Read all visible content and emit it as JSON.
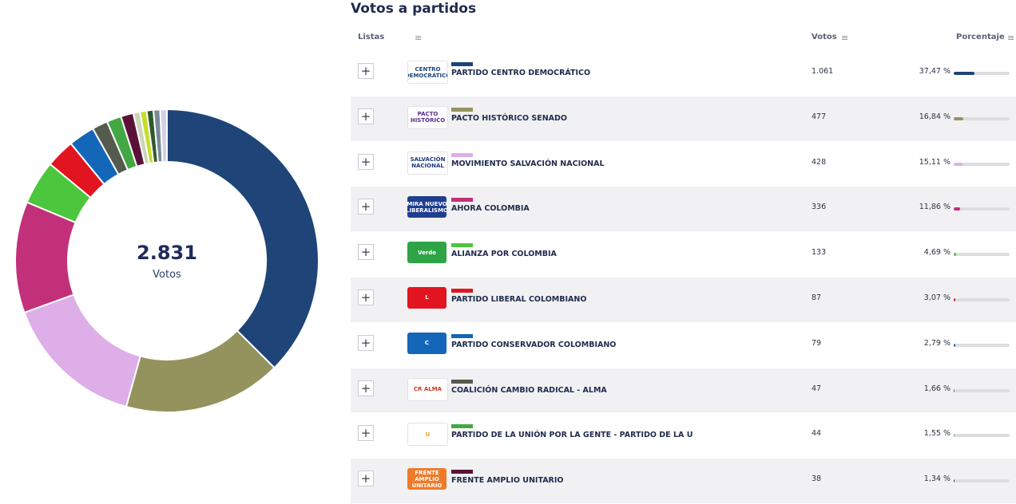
{
  "summary": {
    "total": "2.831",
    "label": "Votos"
  },
  "title": "Votos a partidos",
  "table": {
    "headers": {
      "lists": "Listas",
      "votes": "Votos",
      "percentage": "Porcentaje"
    },
    "rows": [
      {
        "name": "PARTIDO CENTRO DEMOCRÁTICO",
        "votes": "1.061",
        "pct_text": "37,47 %",
        "pct": 37.47,
        "color": "#1e4478",
        "logo_text": "CENTRO DEMOCRÁTICO",
        "logo_bg": "#ffffff",
        "logo_fg": "#1e4478"
      },
      {
        "name": "PACTO HISTÓRICO SENADO",
        "votes": "477",
        "pct_text": "16,84 %",
        "pct": 16.84,
        "color": "#94935e",
        "logo_text": "PACTO HISTÓRICO",
        "logo_bg": "#ffffff",
        "logo_fg": "#5b2c8a"
      },
      {
        "name": "MOVIMIENTO SALVACIÓN NACIONAL",
        "votes": "428",
        "pct_text": "15,11 %",
        "pct": 15.11,
        "color": "#ddaee8",
        "logo_text": "SALVACIÓN NACIONAL",
        "logo_bg": "#ffffff",
        "logo_fg": "#1e3a7a"
      },
      {
        "name": "AHORA COLOMBIA",
        "votes": "336",
        "pct_text": "11,86 %",
        "pct": 11.86,
        "color": "#c2307a",
        "logo_text": "MIRA NUEVO LIBERALISMO",
        "logo_bg": "#1e3f8f",
        "logo_fg": "#ffffff"
      },
      {
        "name": "ALIANZA POR COLOMBIA",
        "votes": "133",
        "pct_text": "4,69 %",
        "pct": 4.69,
        "color": "#4cc63c",
        "logo_text": "Verde",
        "logo_bg": "#2fa446",
        "logo_fg": "#ffffff"
      },
      {
        "name": "PARTIDO LIBERAL COLOMBIANO",
        "votes": "87",
        "pct_text": "3,07 %",
        "pct": 3.07,
        "color": "#e1141f",
        "logo_text": "L",
        "logo_bg": "#e1141f",
        "logo_fg": "#ffffff"
      },
      {
        "name": "PARTIDO CONSERVADOR COLOMBIANO",
        "votes": "79",
        "pct_text": "2,79 %",
        "pct": 2.79,
        "color": "#1366b8",
        "logo_text": "C",
        "logo_bg": "#1366b8",
        "logo_fg": "#ffffff"
      },
      {
        "name": "COALICIÓN CAMBIO RADICAL - ALMA",
        "votes": "47",
        "pct_text": "1,66 %",
        "pct": 1.66,
        "color": "#555a4e",
        "logo_text": "CR ALMA",
        "logo_bg": "#ffffff",
        "logo_fg": "#d4361c"
      },
      {
        "name": "PARTIDO DE LA UNIÓN POR LA GENTE - PARTIDO DE LA U",
        "votes": "44",
        "pct_text": "1,55 %",
        "pct": 1.55,
        "color": "#43a843",
        "logo_text": "U",
        "logo_bg": "#ffffff",
        "logo_fg": "#f0a020"
      },
      {
        "name": "FRENTE AMPLIO UNITARIO",
        "votes": "38",
        "pct_text": "1,34 %",
        "pct": 1.34,
        "color": "#5c1238",
        "logo_text": "FRENTE AMPLIO UNITARIO",
        "logo_bg": "#ef7a2a",
        "logo_fg": "#ffffff"
      }
    ]
  },
  "chart_data": {
    "type": "pie",
    "categories": [
      "PARTIDO CENTRO DEMOCRÁTICO",
      "PACTO HISTÓRICO SENADO",
      "MOVIMIENTO SALVACIÓN NACIONAL",
      "AHORA COLOMBIA",
      "ALIANZA POR COLOMBIA",
      "PARTIDO LIBERAL COLOMBIANO",
      "PARTIDO CONSERVADOR COLOMBIANO",
      "COALICIÓN CAMBIO RADICAL - ALMA",
      "PARTIDO DE LA UNIÓN POR LA GENTE - PARTIDO DE LA U",
      "FRENTE AMPLIO UNITARIO"
    ],
    "values": [
      1061,
      477,
      428,
      336,
      133,
      87,
      79,
      47,
      44,
      38
    ],
    "colors": [
      "#1e4478",
      "#94935e",
      "#ddaee8",
      "#c2307a",
      "#4cc63c",
      "#e1141f",
      "#1366b8",
      "#555a4e",
      "#43a843",
      "#5c1238"
    ],
    "minor_colors": [
      "#c9d6b8",
      "#c6dd2a",
      "#2d5a2d",
      "#7a8a9a",
      "#d6d0e6"
    ],
    "total": 2831
  }
}
